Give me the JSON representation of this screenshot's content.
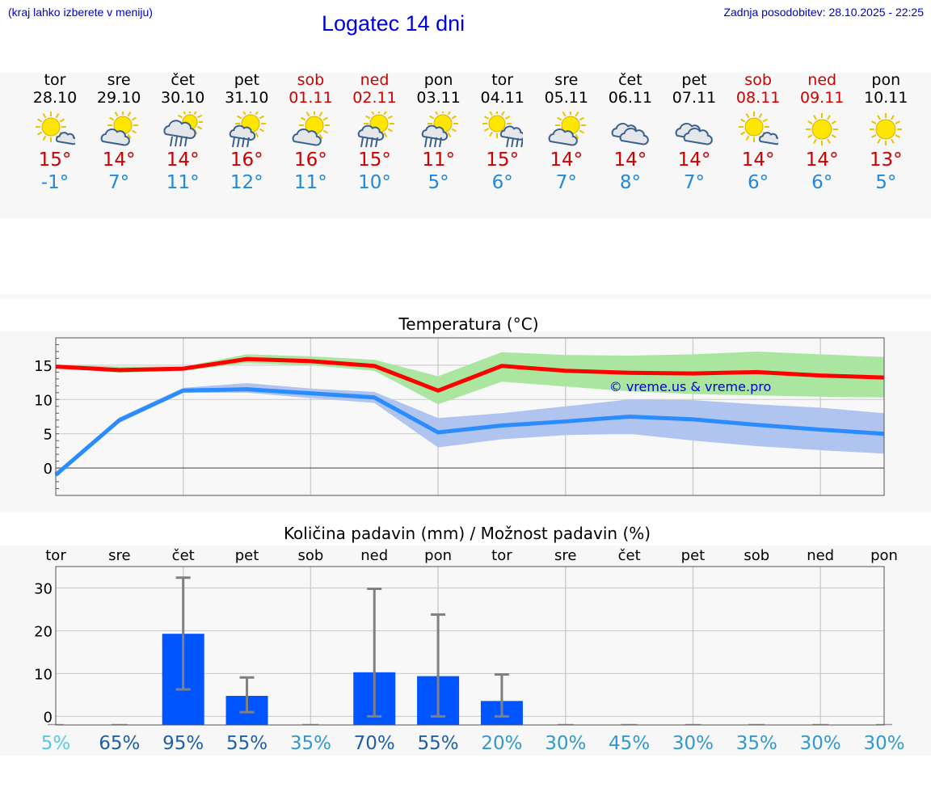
{
  "header": {
    "note": "(kraj lahko izberete v meniju)",
    "title": "Logatec 14 dni",
    "updated": "Zadnja posodobitev: 28.10.2025 - 22:25"
  },
  "days": [
    {
      "name": "tor",
      "date": "28.10",
      "weekend": false,
      "icon": "sun-cloud-icon",
      "tmax": "15°",
      "tmin": "-1°"
    },
    {
      "name": "sre",
      "date": "29.10",
      "weekend": false,
      "icon": "cloud-sun-icon",
      "tmax": "14°",
      "tmin": "7°"
    },
    {
      "name": "čet",
      "date": "30.10",
      "weekend": false,
      "icon": "cloud-sun-rain-icon",
      "tmax": "14°",
      "tmin": "11°"
    },
    {
      "name": "pet",
      "date": "31.10",
      "weekend": false,
      "icon": "sun-rain-icon",
      "tmax": "16°",
      "tmin": "12°"
    },
    {
      "name": "sob",
      "date": "01.11",
      "weekend": true,
      "icon": "cloud-sun-icon",
      "tmax": "16°",
      "tmin": "11°"
    },
    {
      "name": "ned",
      "date": "02.11",
      "weekend": true,
      "icon": "sun-rain-icon",
      "tmax": "15°",
      "tmin": "10°"
    },
    {
      "name": "pon",
      "date": "03.11",
      "weekend": false,
      "icon": "sun-rain-icon",
      "tmax": "11°",
      "tmin": "5°"
    },
    {
      "name": "tor",
      "date": "04.11",
      "weekend": false,
      "icon": "sun-cloud-rain-icon",
      "tmax": "15°",
      "tmin": "6°"
    },
    {
      "name": "sre",
      "date": "05.11",
      "weekend": false,
      "icon": "cloud-sun-icon",
      "tmax": "14°",
      "tmin": "7°"
    },
    {
      "name": "čet",
      "date": "06.11",
      "weekend": false,
      "icon": "cloudy-icon",
      "tmax": "14°",
      "tmin": "8°"
    },
    {
      "name": "pet",
      "date": "07.11",
      "weekend": false,
      "icon": "cloudy-icon",
      "tmax": "14°",
      "tmin": "7°"
    },
    {
      "name": "sob",
      "date": "08.11",
      "weekend": true,
      "icon": "sun-cloud-icon",
      "tmax": "14°",
      "tmin": "6°"
    },
    {
      "name": "ned",
      "date": "09.11",
      "weekend": true,
      "icon": "sun-icon",
      "tmax": "14°",
      "tmin": "6°"
    },
    {
      "name": "pon",
      "date": "10.11",
      "weekend": false,
      "icon": "sun-icon",
      "tmax": "13°",
      "tmin": "5°"
    }
  ],
  "colors": {
    "max_line": "#ff0000",
    "max_band": "#aae6a0",
    "min_line": "#2a8cff",
    "min_band": "#b0c4f0",
    "bar": "#0055ff",
    "error_bar": "#808080",
    "weekend_text": "#cc0000",
    "tmin_text": "#2288dd"
  },
  "chart_data": [
    {
      "type": "line",
      "title": "Temperatura (°C)",
      "watermark": "© vreme.us & vreme.pro",
      "ylim": [
        -4,
        19
      ],
      "yticks": [
        0,
        5,
        10,
        15
      ],
      "categories": [
        "28.10",
        "29.10",
        "30.10",
        "31.10",
        "01.11",
        "02.11",
        "03.11",
        "04.11",
        "05.11",
        "06.11",
        "07.11",
        "08.11",
        "09.11",
        "10.11"
      ],
      "series": [
        {
          "name": "max",
          "values": [
            14.8,
            14.3,
            14.5,
            15.9,
            15.6,
            14.9,
            11.3,
            14.9,
            14.2,
            13.9,
            13.8,
            14.0,
            13.5,
            13.2
          ],
          "band_low": [
            14.6,
            13.9,
            14.2,
            15.3,
            15.0,
            14.2,
            9.3,
            12.6,
            11.9,
            11.2,
            10.8,
            10.6,
            10.4,
            10.3
          ],
          "band_high": [
            15.1,
            14.8,
            14.8,
            16.6,
            16.3,
            15.8,
            13.4,
            16.9,
            16.5,
            16.4,
            16.6,
            17.0,
            16.6,
            16.2
          ]
        },
        {
          "name": "min",
          "values": [
            -1.0,
            7.0,
            11.3,
            11.5,
            10.9,
            10.3,
            5.2,
            6.2,
            6.8,
            7.5,
            7.1,
            6.3,
            5.6,
            5.0
          ],
          "band_low": [
            -1.3,
            6.6,
            11.0,
            11.0,
            10.2,
            9.5,
            3.0,
            4.2,
            4.8,
            5.0,
            4.0,
            3.2,
            2.6,
            2.1
          ],
          "band_high": [
            -0.7,
            7.4,
            11.7,
            12.4,
            11.6,
            11.1,
            7.3,
            8.0,
            9.0,
            10.0,
            9.9,
            9.3,
            8.8,
            8.0
          ]
        }
      ]
    },
    {
      "type": "bar",
      "title": "Količina padavin (mm) / Možnost padavin (%)",
      "ylim": [
        -2,
        35
      ],
      "yticks": [
        0,
        10,
        20,
        30
      ],
      "categories": [
        "tor",
        "sre",
        "čet",
        "pet",
        "sob",
        "ned",
        "pon",
        "tor",
        "sre",
        "čet",
        "pet",
        "sob",
        "ned",
        "pon"
      ],
      "values": [
        0,
        0,
        19.3,
        4.8,
        0,
        10.3,
        9.4,
        3.6,
        0,
        0,
        0,
        0,
        0,
        0
      ],
      "error_low": [
        0,
        0,
        6.3,
        1.0,
        0,
        0,
        0,
        0,
        0,
        0,
        0,
        0,
        0,
        0
      ],
      "error_high": [
        0,
        0,
        32.4,
        9.1,
        0,
        29.8,
        23.8,
        9.8,
        0,
        0,
        0,
        0,
        0,
        0
      ],
      "probabilities": [
        "5%",
        "65%",
        "95%",
        "55%",
        "35%",
        "70%",
        "55%",
        "20%",
        "30%",
        "45%",
        "30%",
        "35%",
        "30%",
        "30%"
      ],
      "probability_colors": [
        "#55ccdd",
        "#1f5fa8",
        "#1f5fa8",
        "#1f5fa8",
        "#3399cc",
        "#1f5fa8",
        "#1f5fa8",
        "#3399cc",
        "#3399cc",
        "#3399cc",
        "#3399cc",
        "#3399cc",
        "#3399cc",
        "#3399cc"
      ]
    }
  ]
}
